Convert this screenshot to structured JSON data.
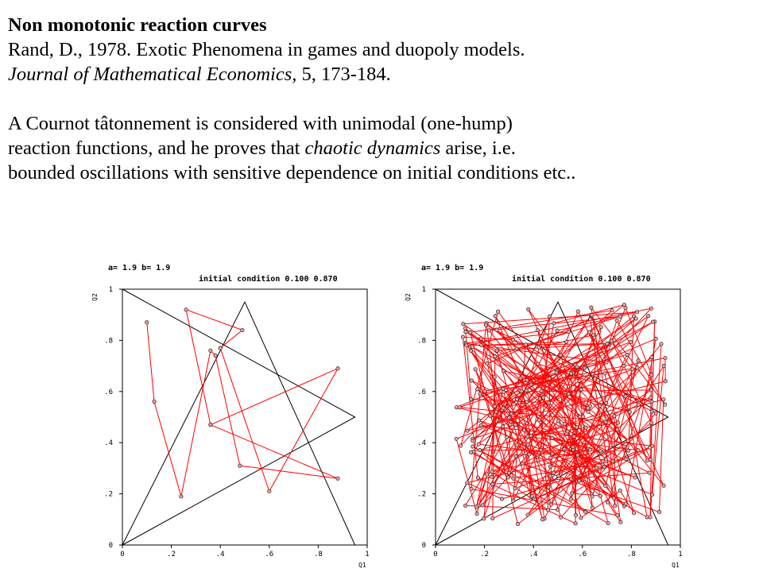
{
  "text": {
    "title": "Non monotonic reaction curves",
    "ref_line1": "Rand, D., 1978. Exotic Phenomena in games and duopoly models.",
    "ref_journal": "Journal of Mathematical Economics,",
    "ref_rest": " 5, 173-184.",
    "p1": "A Cournot tâtonnement is considered with unimodal (one-hump)",
    "p2a": "reaction functions, and he proves that ",
    "p2b": "chaotic dynamics",
    "p2c": " arise, i.e.",
    "p3": "bounded oscillations with sensitive dependence on initial conditions etc.."
  },
  "chart_data": [
    {
      "type": "line",
      "header_params": "a=  1.9   b=  1.9",
      "header_initial": "initial condition 0.100    0.870",
      "xlabel": "Q1",
      "ylabel": "Q2",
      "xlim": [
        0,
        1
      ],
      "ylim": [
        0,
        1
      ],
      "xticks": [
        "0",
        ".2",
        ".4",
        ".6",
        ".8",
        "1"
      ],
      "yticks": [
        "0",
        ".2",
        ".4",
        ".6",
        ".8",
        "1"
      ],
      "reaction_curves": [
        {
          "name": "",
          "points": [
            [
              0,
              0
            ],
            [
              0.5,
              0.95
            ],
            [
              0.95,
              0
            ]
          ]
        },
        {
          "name": "",
          "points": [
            [
              0,
              1
            ],
            [
              0.95,
              0.5
            ],
            [
              0,
              0
            ]
          ]
        }
      ],
      "trajectory": [
        [
          0.1,
          0.87
        ],
        [
          0.13,
          0.56
        ],
        [
          0.24,
          0.19
        ],
        [
          0.36,
          0.76
        ],
        [
          0.38,
          0.74
        ],
        [
          0.48,
          0.31
        ],
        [
          0.88,
          0.26
        ],
        [
          0.36,
          0.47
        ],
        [
          0.26,
          0.92
        ],
        [
          0.49,
          0.84
        ],
        [
          0.4,
          0.77
        ],
        [
          0.6,
          0.21
        ],
        [
          0.88,
          0.69
        ],
        [
          0.36,
          0.47
        ]
      ]
    },
    {
      "type": "line",
      "header_params": "a=  1.9   b=  1.9",
      "header_initial": "initial condition 0.100    0.870",
      "xlabel": "Q1",
      "ylabel": "Q2",
      "xlim": [
        0,
        1
      ],
      "ylim": [
        0,
        1
      ],
      "xticks": [
        "0",
        ".2",
        ".4",
        ".6",
        ".8",
        "1"
      ],
      "yticks": [
        "0",
        ".2",
        ".4",
        ".6",
        ".8",
        "1"
      ],
      "reaction_curves": [
        {
          "name": "",
          "points": [
            [
              0,
              0
            ],
            [
              0.5,
              0.95
            ],
            [
              0.95,
              0
            ]
          ]
        },
        {
          "name": "",
          "points": [
            [
              0,
              1
            ],
            [
              0.95,
              0.5
            ],
            [
              0,
              0
            ]
          ]
        }
      ],
      "trajectory_points": 260,
      "trajectory_range": [
        0.08,
        0.94
      ]
    }
  ]
}
